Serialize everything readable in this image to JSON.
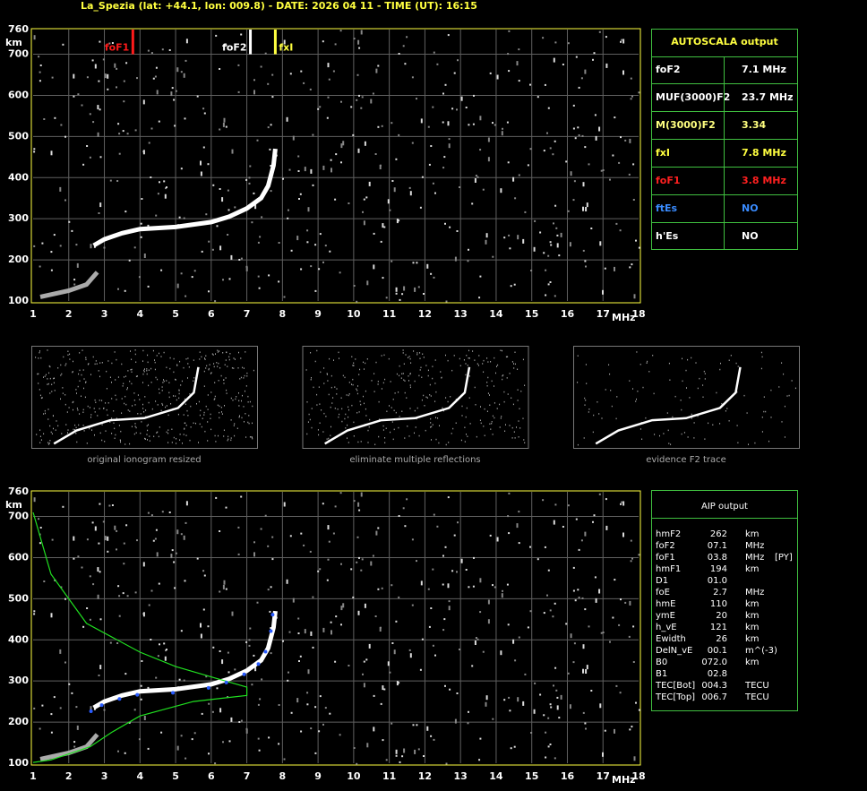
{
  "header": {
    "title": "La_Spezia (lat: +44.1, lon: 009.8) - DATE: 2026 04 11 - TIME (UT): 16:15"
  },
  "axes": {
    "y_unit": "km",
    "x_unit": "MHz",
    "yticks": [
      100,
      200,
      300,
      400,
      500,
      600,
      700,
      760
    ],
    "xticks": [
      1,
      2,
      3,
      4,
      5,
      6,
      7,
      8,
      9,
      10,
      11,
      12,
      13,
      14,
      15,
      16,
      17,
      18
    ]
  },
  "markers": [
    {
      "label": "foF1",
      "freq": 3.8,
      "color": "#ff1a1a"
    },
    {
      "label": "foF2",
      "freq": 7.1,
      "color": "#ffffff"
    },
    {
      "label": "fxI",
      "freq": 7.8,
      "color": "#ffff40"
    }
  ],
  "autoscala": {
    "title": "AUTOSCALA output",
    "rows": [
      {
        "label": "foF2",
        "value": "7.1 MHz",
        "color": "#ffffff"
      },
      {
        "label": "MUF(3000)F2",
        "value": "23.7 MHz",
        "color": "#ffffff"
      },
      {
        "label": "M(3000)F2",
        "value": "3.34",
        "color": "#ffff80"
      },
      {
        "label": "fxI",
        "value": "7.8 MHz",
        "color": "#ffff40"
      },
      {
        "label": "foF1",
        "value": "3.8 MHz",
        "color": "#ff2020"
      },
      {
        "label": "ftEs",
        "value": "NO",
        "color": "#3a8cff"
      },
      {
        "label": "h'Es",
        "value": "NO",
        "color": "#ffffff"
      }
    ]
  },
  "thumbnails": [
    "original ionogram resized",
    "eliminate multiple reflections",
    "evidence F2 trace"
  ],
  "aip": {
    "title": "AIP output",
    "rows": [
      [
        "hmF2",
        "262",
        "km",
        ""
      ],
      [
        "foF2",
        "07.1",
        "MHz",
        ""
      ],
      [
        "foF1",
        "03.8",
        "MHz",
        "[PY]"
      ],
      [
        "hmF1",
        "194",
        "km",
        ""
      ],
      [
        "D1",
        "01.0",
        "",
        ""
      ],
      [
        "foE",
        "2.7",
        "MHz",
        ""
      ],
      [
        "hmE",
        "110",
        "km",
        ""
      ],
      [
        "ymE",
        "20",
        "km",
        ""
      ],
      [
        "h_vE",
        "121",
        "km",
        ""
      ],
      [
        "Ewidth",
        "26",
        "km",
        ""
      ],
      [
        "DelN_vE",
        "00.1",
        "m^(-3)",
        ""
      ],
      [
        "B0",
        "072.0",
        "km",
        ""
      ],
      [
        "B1",
        "02.8",
        "",
        ""
      ],
      [
        "TEC[Bot]",
        "004.3",
        "TECU",
        ""
      ],
      [
        "TEC[Top]",
        "006.7",
        "TECU",
        ""
      ]
    ]
  }
}
